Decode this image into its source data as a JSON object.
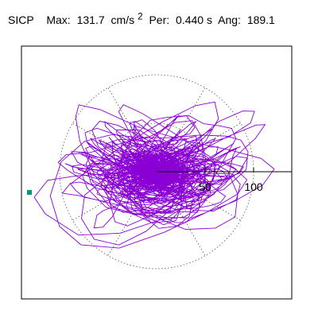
{
  "header": {
    "station": "SICP",
    "max_label": "Max:",
    "max_value": "131.7",
    "max_unit_base": "cm/s",
    "max_unit_exp": "2",
    "per_label": "Per:",
    "per_value": "0.440 s",
    "ang_label": "Ang:",
    "ang_value": "189.1"
  },
  "chart_data": {
    "type": "polar",
    "title": "SICP  Max: 131.7 cm/s² Per: 0.440 s Ang: 189.1",
    "radial_ticks": [
      "50",
      "100"
    ],
    "radial_tick_values": [
      50,
      100
    ],
    "max_radius": 131.7,
    "max_angle_deg": 189.1,
    "rings": [
      50,
      100
    ],
    "grid": true,
    "series": [
      {
        "name": "",
        "color": "#8a00d4",
        "description_free": true
      }
    ],
    "marker_color": "#009977"
  }
}
